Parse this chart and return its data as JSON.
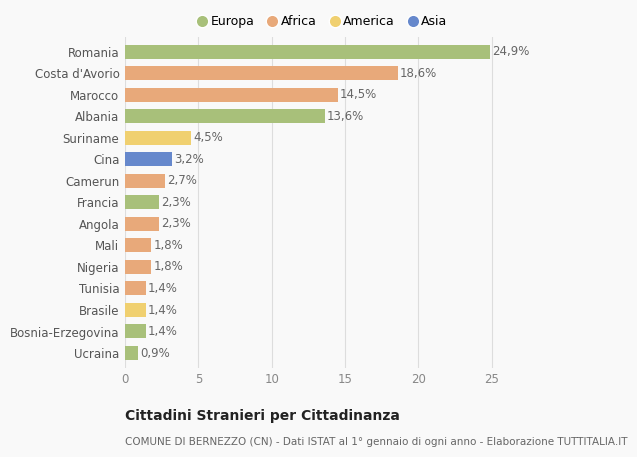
{
  "categories": [
    "Romania",
    "Costa d'Avorio",
    "Marocco",
    "Albania",
    "Suriname",
    "Cina",
    "Camerun",
    "Francia",
    "Angola",
    "Mali",
    "Nigeria",
    "Tunisia",
    "Brasile",
    "Bosnia-Erzegovina",
    "Ucraina"
  ],
  "values": [
    24.9,
    18.6,
    14.5,
    13.6,
    4.5,
    3.2,
    2.7,
    2.3,
    2.3,
    1.8,
    1.8,
    1.4,
    1.4,
    1.4,
    0.9
  ],
  "labels": [
    "24,9%",
    "18,6%",
    "14,5%",
    "13,6%",
    "4,5%",
    "3,2%",
    "2,7%",
    "2,3%",
    "2,3%",
    "1,8%",
    "1,8%",
    "1,4%",
    "1,4%",
    "1,4%",
    "0,9%"
  ],
  "continents": [
    "Europa",
    "Africa",
    "Africa",
    "Europa",
    "America",
    "Asia",
    "Africa",
    "Europa",
    "Africa",
    "Africa",
    "Africa",
    "Africa",
    "America",
    "Europa",
    "Europa"
  ],
  "colors": {
    "Europa": "#a8c07a",
    "Africa": "#e8a97a",
    "America": "#f0d070",
    "Asia": "#6688cc"
  },
  "legend_order": [
    "Europa",
    "Africa",
    "America",
    "Asia"
  ],
  "xlim": [
    0,
    27
  ],
  "xticks": [
    0,
    5,
    10,
    15,
    20,
    25
  ],
  "title_main": "Cittadini Stranieri per Cittadinanza",
  "title_sub": "COMUNE DI BERNEZZO (CN) - Dati ISTAT al 1° gennaio di ogni anno - Elaborazione TUTTITALIA.IT",
  "background_color": "#f9f9f9",
  "bar_height": 0.65,
  "label_fontsize": 8.5,
  "tick_fontsize": 8.5,
  "title_fontsize": 10,
  "subtitle_fontsize": 7.5
}
